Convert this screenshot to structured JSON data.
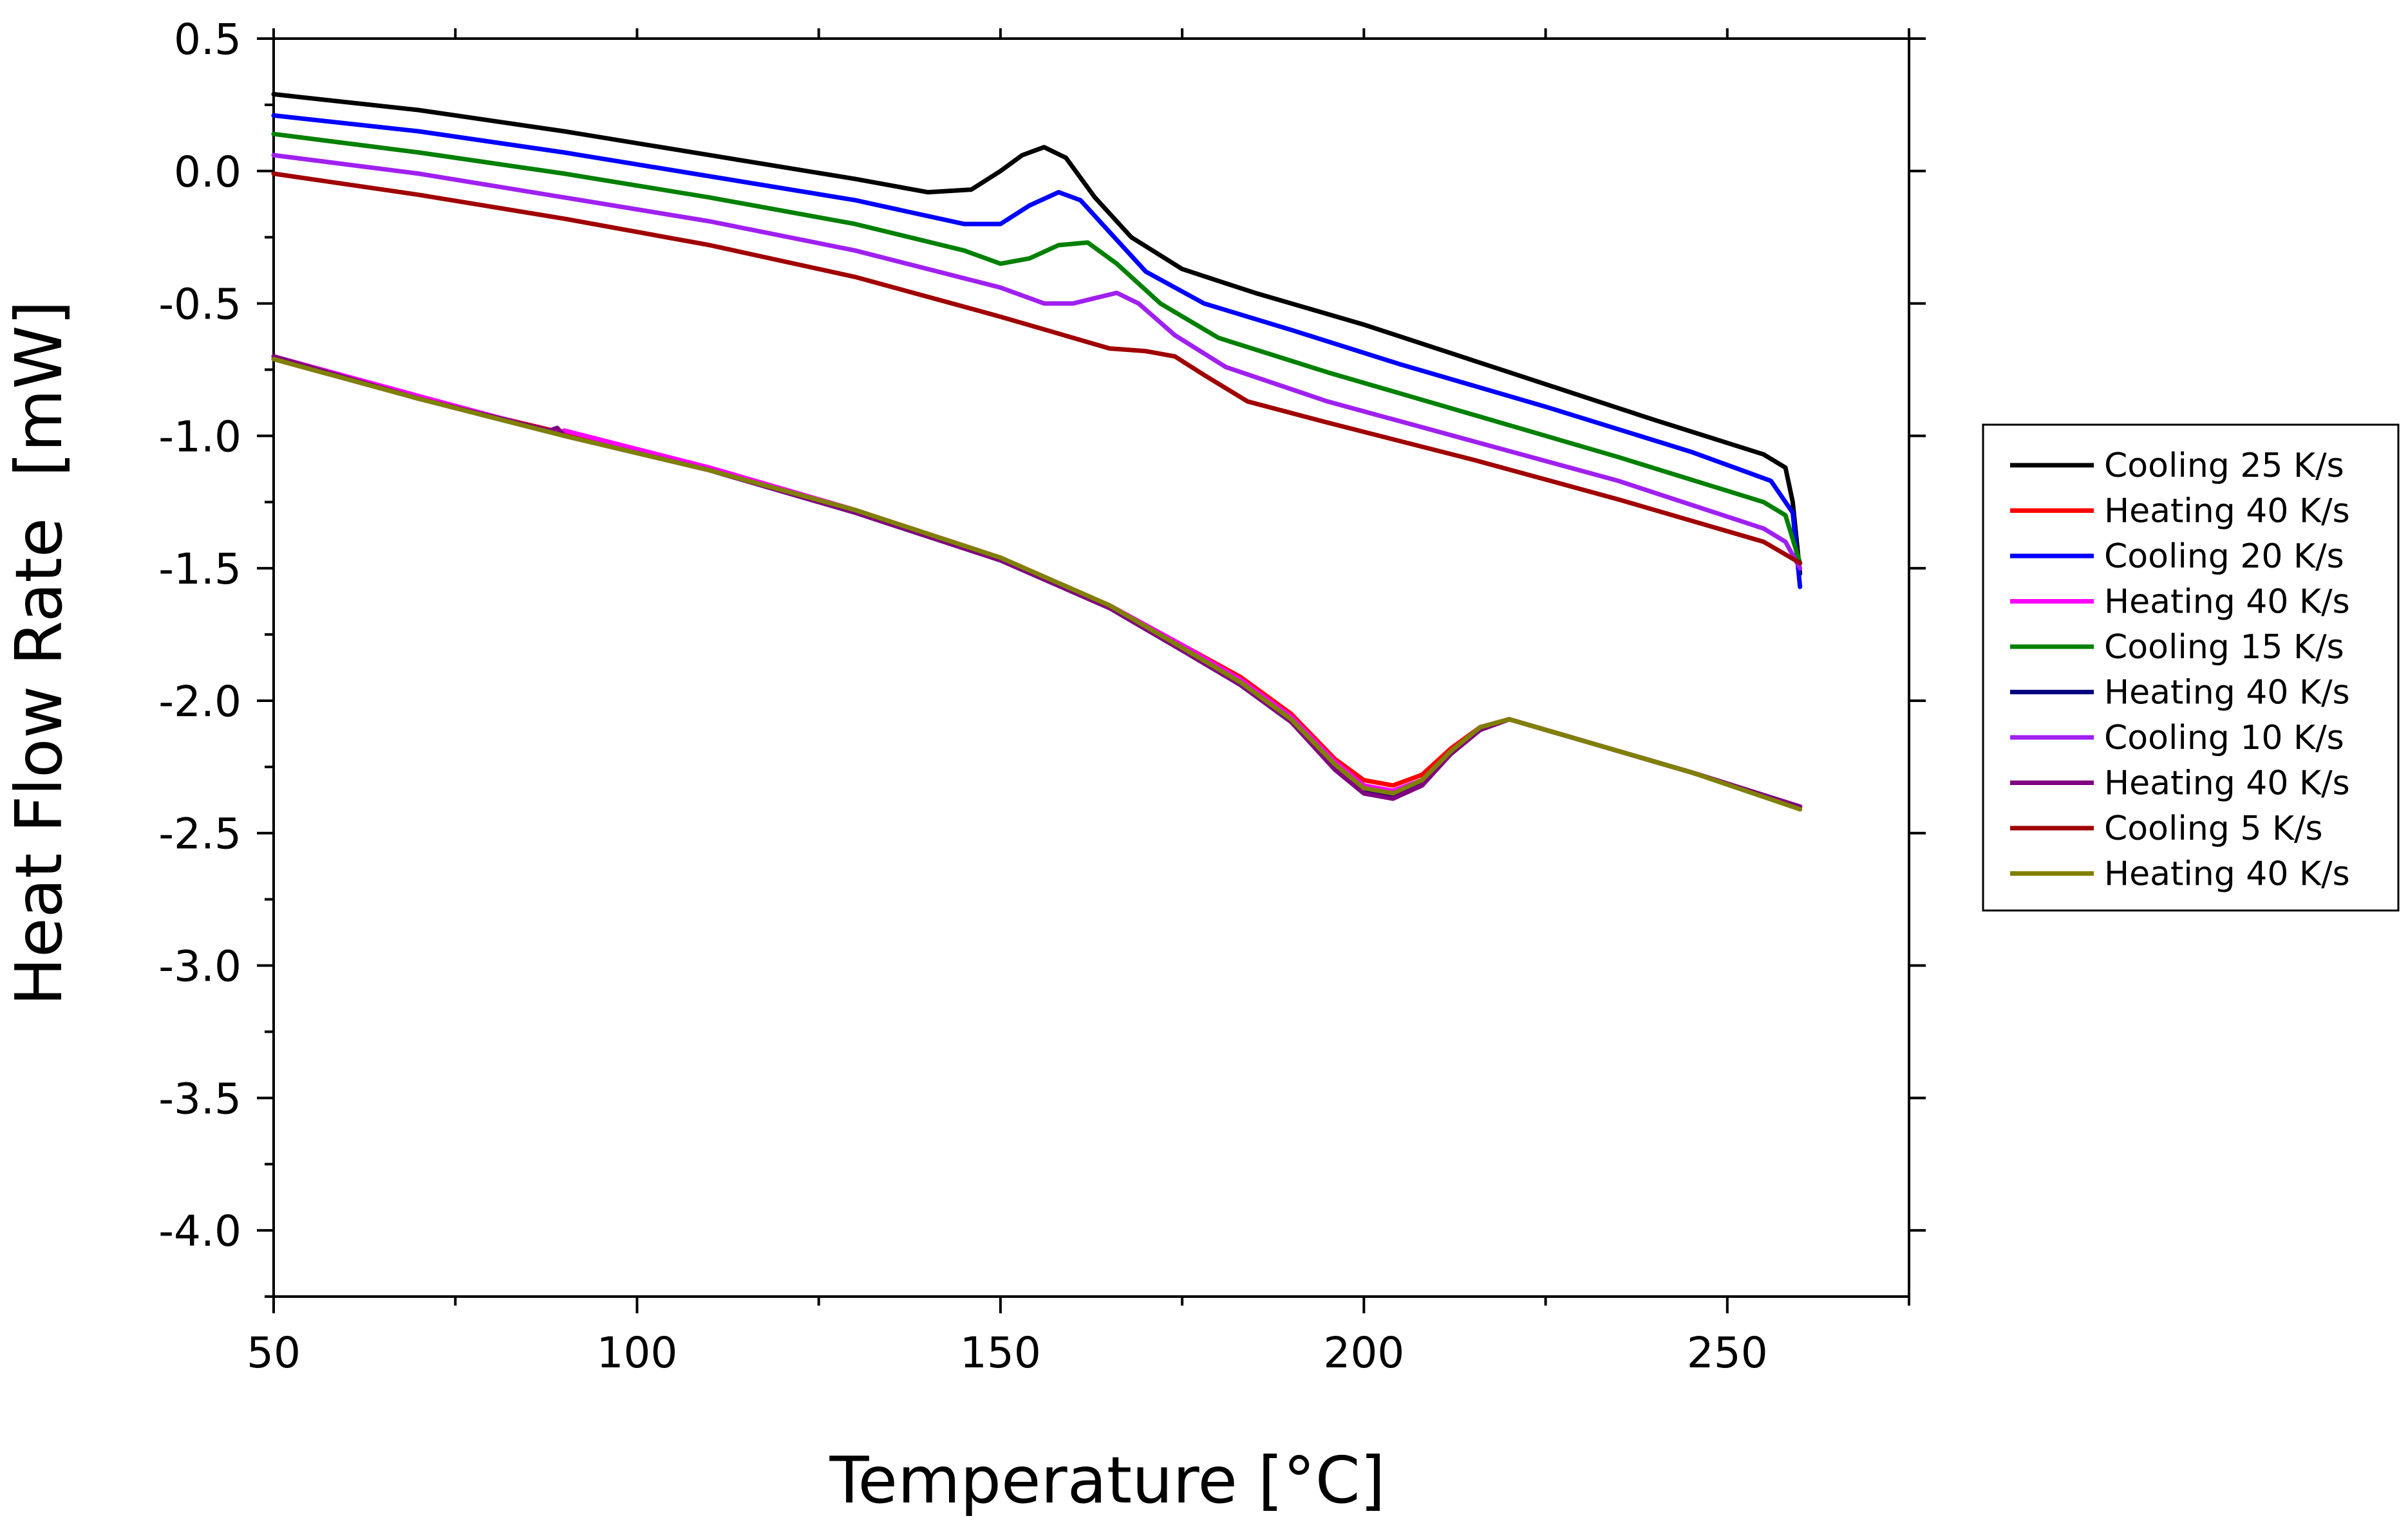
{
  "chart_data": {
    "type": "line",
    "title": "",
    "xlabel": "Temperature [°C]",
    "ylabel": "Heat Flow Rate  [mW]",
    "xlim": [
      50,
      275
    ],
    "ylim": [
      -4.25,
      0.5
    ],
    "xticks": [
      50,
      100,
      150,
      200,
      250
    ],
    "yticks": [
      0.5,
      0.0,
      -0.5,
      -1.0,
      -1.5,
      -2.0,
      -2.5,
      -3.0,
      -3.5,
      -4.0
    ],
    "ytick_labels": [
      "0.5",
      "0.0",
      "-0.5",
      "-1.0",
      "-1.5",
      "-2.0",
      "-2.5",
      "-3.0",
      "-3.5",
      "-4.0"
    ],
    "xtick_labels": [
      "50",
      "100",
      "150",
      "200",
      "250"
    ],
    "grid": false,
    "legend_position": "right",
    "series": [
      {
        "name": "Cooling 25 K/s",
        "color": "#000000",
        "x": [
          50,
          70,
          90,
          110,
          130,
          140,
          146,
          150,
          153,
          156,
          159,
          163,
          168,
          175,
          185,
          200,
          220,
          240,
          255,
          258,
          259,
          260
        ],
        "y": [
          0.29,
          0.23,
          0.15,
          0.06,
          -0.03,
          -0.08,
          -0.07,
          0.0,
          0.06,
          0.09,
          0.05,
          -0.1,
          -0.25,
          -0.37,
          -0.46,
          -0.58,
          -0.76,
          -0.94,
          -1.07,
          -1.12,
          -1.25,
          -1.52
        ]
      },
      {
        "name": "Heating 40 K/s",
        "color": "#ff0000",
        "x": [
          50,
          70,
          90,
          110,
          130,
          150,
          165,
          175,
          183,
          190,
          196,
          200,
          204,
          208,
          212,
          216,
          220,
          230,
          245,
          260
        ],
        "y": [
          -0.71,
          -0.86,
          -0.99,
          -1.12,
          -1.28,
          -1.46,
          -1.64,
          -1.79,
          -1.91,
          -2.05,
          -2.22,
          -2.3,
          -2.32,
          -2.28,
          -2.18,
          -2.1,
          -2.07,
          -2.15,
          -2.27,
          -2.4
        ]
      },
      {
        "name": "Cooling 20 K/s",
        "color": "#0000ff",
        "x": [
          50,
          70,
          90,
          110,
          130,
          145,
          150,
          154,
          158,
          161,
          165,
          170,
          178,
          190,
          205,
          225,
          245,
          256,
          259,
          260
        ],
        "y": [
          0.21,
          0.15,
          0.07,
          -0.02,
          -0.11,
          -0.2,
          -0.2,
          -0.13,
          -0.08,
          -0.11,
          -0.23,
          -0.38,
          -0.5,
          -0.6,
          -0.73,
          -0.89,
          -1.06,
          -1.17,
          -1.29,
          -1.57
        ]
      },
      {
        "name": "Heating 40 K/s",
        "color": "#ff00ff",
        "x": [
          50,
          70,
          89,
          90,
          110,
          130,
          150,
          165,
          175,
          183,
          190,
          196,
          200,
          204,
          208,
          212,
          216,
          220,
          230,
          245,
          260
        ],
        "y": [
          -0.7,
          -0.85,
          -0.99,
          -0.98,
          -1.12,
          -1.28,
          -1.46,
          -1.64,
          -1.79,
          -1.92,
          -2.06,
          -2.23,
          -2.32,
          -2.34,
          -2.3,
          -2.19,
          -2.1,
          -2.07,
          -2.15,
          -2.27,
          -2.4
        ]
      },
      {
        "name": "Cooling 15 K/s",
        "color": "#008000",
        "x": [
          50,
          70,
          90,
          110,
          130,
          145,
          150,
          154,
          158,
          162,
          166,
          172,
          180,
          195,
          215,
          235,
          255,
          258,
          260
        ],
        "y": [
          0.14,
          0.07,
          -0.01,
          -0.1,
          -0.2,
          -0.3,
          -0.35,
          -0.33,
          -0.28,
          -0.27,
          -0.35,
          -0.5,
          -0.63,
          -0.76,
          -0.92,
          -1.08,
          -1.25,
          -1.3,
          -1.48
        ]
      },
      {
        "name": "Heating 40 K/s",
        "color": "#000080",
        "x": [
          50,
          70,
          90,
          110,
          130,
          150,
          165,
          175,
          183,
          190,
          196,
          200,
          204,
          208,
          212,
          216,
          220,
          230,
          245,
          260
        ],
        "y": [
          -0.71,
          -0.86,
          -1.0,
          -1.13,
          -1.29,
          -1.47,
          -1.65,
          -1.81,
          -1.94,
          -2.08,
          -2.25,
          -2.34,
          -2.36,
          -2.31,
          -2.2,
          -2.11,
          -2.07,
          -2.15,
          -2.27,
          -2.4
        ]
      },
      {
        "name": "Cooling 10 K/s",
        "color": "#a020f0",
        "x": [
          50,
          70,
          90,
          110,
          130,
          150,
          156,
          160,
          163,
          166,
          169,
          174,
          181,
          195,
          215,
          235,
          255,
          258,
          260
        ],
        "y": [
          0.06,
          -0.01,
          -0.1,
          -0.19,
          -0.3,
          -0.44,
          -0.5,
          -0.5,
          -0.48,
          -0.46,
          -0.5,
          -0.62,
          -0.74,
          -0.87,
          -1.02,
          -1.17,
          -1.35,
          -1.4,
          -1.5
        ]
      },
      {
        "name": "Heating 40 K/s",
        "color": "#800080",
        "x": [
          50,
          70,
          88,
          89,
          90,
          110,
          130,
          150,
          165,
          175,
          183,
          190,
          196,
          200,
          204,
          208,
          212,
          216,
          220,
          230,
          245,
          260
        ],
        "y": [
          -0.7,
          -0.86,
          -0.98,
          -0.97,
          -1.0,
          -1.13,
          -1.29,
          -1.47,
          -1.65,
          -1.81,
          -1.94,
          -2.08,
          -2.26,
          -2.35,
          -2.37,
          -2.32,
          -2.2,
          -2.11,
          -2.07,
          -2.15,
          -2.27,
          -2.4
        ]
      },
      {
        "name": "Cooling 5 K/s",
        "color": "#a00000",
        "x": [
          50,
          70,
          90,
          110,
          130,
          150,
          160,
          165,
          170,
          174,
          178,
          184,
          195,
          215,
          235,
          255,
          260
        ],
        "y": [
          -0.01,
          -0.09,
          -0.18,
          -0.28,
          -0.4,
          -0.55,
          -0.63,
          -0.67,
          -0.68,
          -0.7,
          -0.77,
          -0.87,
          -0.95,
          -1.09,
          -1.24,
          -1.4,
          -1.48
        ]
      },
      {
        "name": "Heating 40 K/s",
        "color": "#808000",
        "x": [
          50,
          70,
          90,
          110,
          130,
          150,
          165,
          175,
          183,
          190,
          196,
          200,
          204,
          208,
          212,
          216,
          220,
          230,
          245,
          260
        ],
        "y": [
          -0.71,
          -0.86,
          -1.0,
          -1.13,
          -1.28,
          -1.46,
          -1.64,
          -1.8,
          -1.93,
          -2.07,
          -2.24,
          -2.33,
          -2.35,
          -2.3,
          -2.19,
          -2.1,
          -2.07,
          -2.15,
          -2.27,
          -2.41
        ]
      }
    ]
  }
}
